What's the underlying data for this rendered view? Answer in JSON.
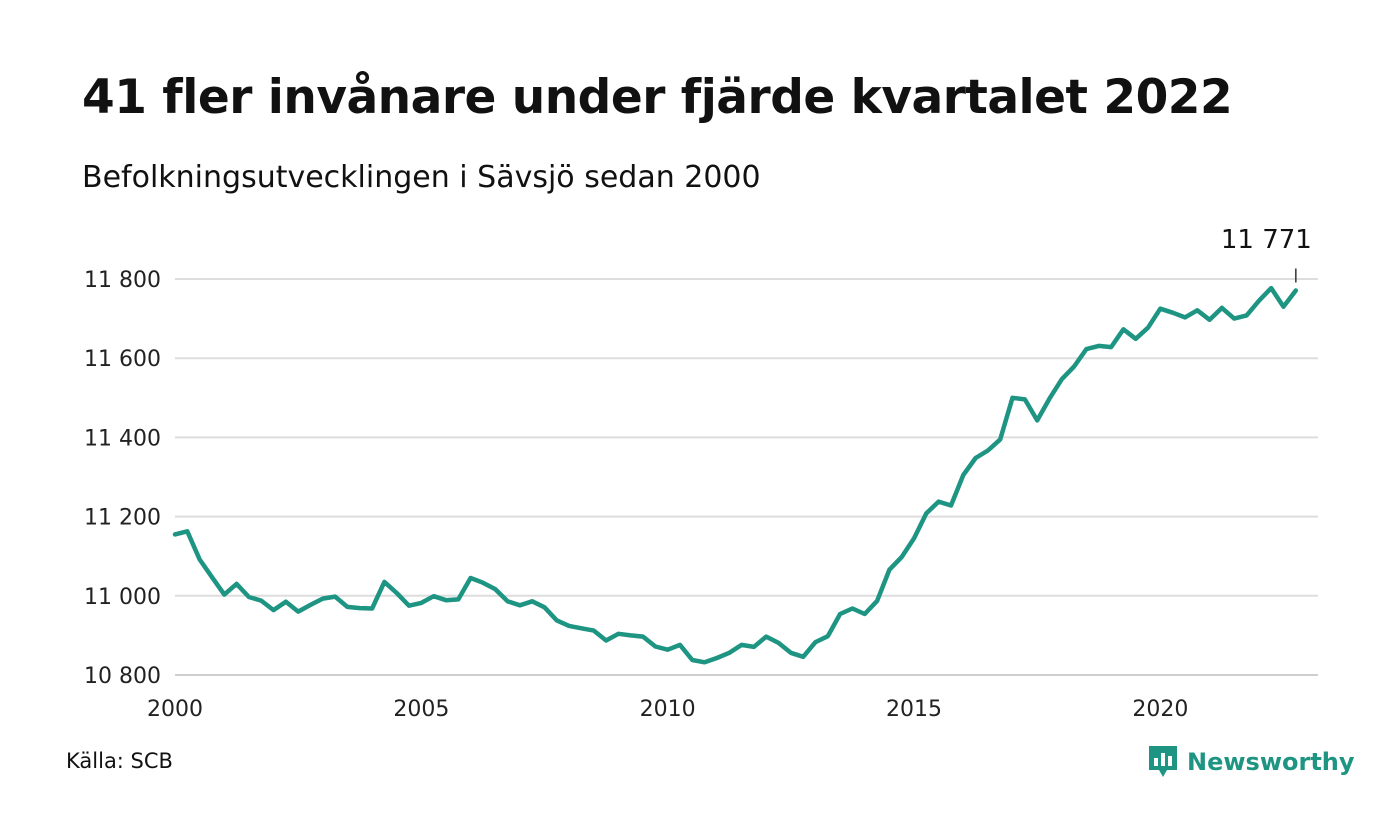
{
  "title": "41 fler invånare under fjärde kvartalet 2022",
  "subtitle": "Befolkningsutvecklingen i Sävsjö sedan 2000",
  "source": "Källa: SCB",
  "brand": {
    "name": "Newsworthy",
    "color": "#1e9482",
    "icon": "bar-chart-speech-bubble-icon"
  },
  "chart_data": {
    "type": "line",
    "title": "41 fler invånare under fjärde kvartalet 2022",
    "subtitle": "Befolkningsutvecklingen i Sävsjö sedan 2000",
    "xlabel": "",
    "ylabel": "",
    "xlim": [
      2000,
      2023.2
    ],
    "ylim": [
      10800,
      11800
    ],
    "grid": true,
    "line_color": "#1e9482",
    "x_ticks": [
      {
        "value": 2000,
        "label": "2000"
      },
      {
        "value": 2005,
        "label": "2005"
      },
      {
        "value": 2010,
        "label": "2010"
      },
      {
        "value": 2015,
        "label": "2015"
      },
      {
        "value": 2020,
        "label": "2020"
      }
    ],
    "y_ticks": [
      {
        "value": 10800,
        "label": "10 800"
      },
      {
        "value": 11000,
        "label": "11 000"
      },
      {
        "value": 11200,
        "label": "11 200"
      },
      {
        "value": 11400,
        "label": "11 400"
      },
      {
        "value": 11600,
        "label": "11 600"
      },
      {
        "value": 11800,
        "label": "11 800"
      }
    ],
    "annotation": {
      "label": "11 771",
      "value": 11771
    },
    "series": [
      {
        "values": [
          [
            2000.0,
            11155
          ],
          [
            2000.25,
            11163
          ],
          [
            2000.5,
            11092
          ],
          [
            2000.75,
            11047
          ],
          [
            2001.0,
            11003
          ],
          [
            2001.25,
            11030
          ],
          [
            2001.5,
            10997
          ],
          [
            2001.75,
            10988
          ],
          [
            2002.0,
            10964
          ],
          [
            2002.25,
            10985
          ],
          [
            2002.5,
            10960
          ],
          [
            2002.75,
            10977
          ],
          [
            2003.0,
            10993
          ],
          [
            2003.25,
            10998
          ],
          [
            2003.5,
            10972
          ],
          [
            2003.75,
            10969
          ],
          [
            2004.0,
            10968
          ],
          [
            2004.25,
            11035
          ],
          [
            2004.5,
            11007
          ],
          [
            2004.75,
            10975
          ],
          [
            2005.0,
            10982
          ],
          [
            2005.25,
            10999
          ],
          [
            2005.5,
            10989
          ],
          [
            2005.75,
            10991
          ],
          [
            2006.0,
            11045
          ],
          [
            2006.25,
            11033
          ],
          [
            2006.5,
            11017
          ],
          [
            2006.75,
            10986
          ],
          [
            2007.0,
            10976
          ],
          [
            2007.25,
            10986
          ],
          [
            2007.5,
            10971
          ],
          [
            2007.75,
            10938
          ],
          [
            2008.0,
            10924
          ],
          [
            2008.25,
            10918
          ],
          [
            2008.5,
            10912
          ],
          [
            2008.75,
            10887
          ],
          [
            2009.0,
            10904
          ],
          [
            2009.25,
            10900
          ],
          [
            2009.5,
            10897
          ],
          [
            2009.75,
            10872
          ],
          [
            2010.0,
            10864
          ],
          [
            2010.25,
            10876
          ],
          [
            2010.5,
            10838
          ],
          [
            2010.75,
            10832
          ],
          [
            2011.0,
            10843
          ],
          [
            2011.25,
            10856
          ],
          [
            2011.5,
            10876
          ],
          [
            2011.75,
            10871
          ],
          [
            2012.0,
            10897
          ],
          [
            2012.25,
            10881
          ],
          [
            2012.5,
            10856
          ],
          [
            2012.75,
            10846
          ],
          [
            2013.0,
            10883
          ],
          [
            2013.25,
            10898
          ],
          [
            2013.5,
            10954
          ],
          [
            2013.75,
            10968
          ],
          [
            2014.0,
            10954
          ],
          [
            2014.25,
            10987
          ],
          [
            2014.5,
            11066
          ],
          [
            2014.75,
            11098
          ],
          [
            2015.0,
            11145
          ],
          [
            2015.25,
            11208
          ],
          [
            2015.5,
            11238
          ],
          [
            2015.75,
            11228
          ],
          [
            2016.0,
            11305
          ],
          [
            2016.25,
            11348
          ],
          [
            2016.5,
            11367
          ],
          [
            2016.75,
            11395
          ],
          [
            2017.0,
            11500
          ],
          [
            2017.25,
            11496
          ],
          [
            2017.5,
            11443
          ],
          [
            2017.75,
            11498
          ],
          [
            2018.0,
            11547
          ],
          [
            2018.25,
            11579
          ],
          [
            2018.5,
            11623
          ],
          [
            2018.75,
            11631
          ],
          [
            2019.0,
            11628
          ],
          [
            2019.25,
            11673
          ],
          [
            2019.5,
            11649
          ],
          [
            2019.75,
            11677
          ],
          [
            2020.0,
            11725
          ],
          [
            2020.25,
            11715
          ],
          [
            2020.5,
            11703
          ],
          [
            2020.75,
            11721
          ],
          [
            2021.0,
            11697
          ],
          [
            2021.25,
            11727
          ],
          [
            2021.5,
            11700
          ],
          [
            2021.75,
            11708
          ],
          [
            2022.0,
            11745
          ],
          [
            2022.25,
            11777
          ],
          [
            2022.5,
            11730
          ],
          [
            2022.75,
            11771
          ]
        ]
      }
    ]
  }
}
